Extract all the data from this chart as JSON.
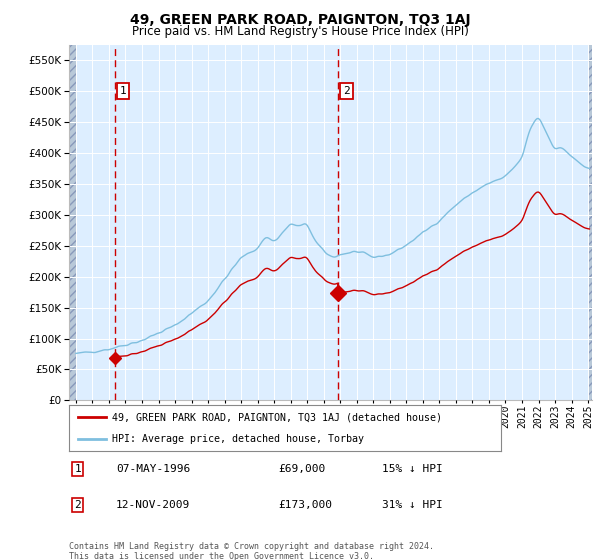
{
  "title": "49, GREEN PARK ROAD, PAIGNTON, TQ3 1AJ",
  "subtitle": "Price paid vs. HM Land Registry's House Price Index (HPI)",
  "legend_line1": "49, GREEN PARK ROAD, PAIGNTON, TQ3 1AJ (detached house)",
  "legend_line2": "HPI: Average price, detached house, Torbay",
  "annotation1_label": "1",
  "annotation1_date": "07-MAY-1996",
  "annotation1_price": "£69,000",
  "annotation1_hpi": "15% ↓ HPI",
  "annotation1_year": 1996.36,
  "annotation1_value": 69000,
  "annotation2_label": "2",
  "annotation2_date": "12-NOV-2009",
  "annotation2_price": "£173,000",
  "annotation2_hpi": "31% ↓ HPI",
  "annotation2_year": 2009.87,
  "annotation2_value": 173000,
  "footer": "Contains HM Land Registry data © Crown copyright and database right 2024.\nThis data is licensed under the Open Government Licence v3.0.",
  "ylim": [
    0,
    575000
  ],
  "yticks": [
    0,
    50000,
    100000,
    150000,
    200000,
    250000,
    300000,
    350000,
    400000,
    450000,
    500000,
    550000
  ],
  "hpi_color": "#7fbfdf",
  "price_color": "#cc0000",
  "bg_color": "#ddeeff",
  "vline_color": "#cc0000"
}
